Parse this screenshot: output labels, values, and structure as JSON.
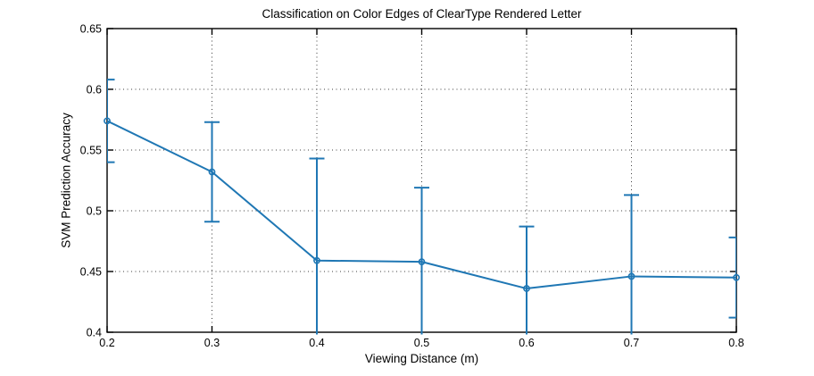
{
  "chart_data": {
    "type": "line",
    "title": "Classification on Color Edges of ClearType Rendered Letter",
    "xlabel": "Viewing Distance (m)",
    "ylabel": "SVM Prediction Accuracy",
    "x": [
      0.2,
      0.3,
      0.4,
      0.5,
      0.6,
      0.7,
      0.8
    ],
    "series": [
      {
        "name": "SVM Prediction Accuracy",
        "values": [
          0.574,
          0.532,
          0.459,
          0.458,
          0.436,
          0.446,
          0.445
        ],
        "errors": [
          0.034,
          0.041,
          0.084,
          0.061,
          0.051,
          0.067,
          0.033
        ],
        "color": "#1f77b4",
        "marker": "circle",
        "error_bars": "vertical, clipped at axis limits"
      }
    ],
    "xlim": [
      0.2,
      0.8
    ],
    "ylim": [
      0.4,
      0.65
    ],
    "xticks": [
      0.2,
      0.3,
      0.4,
      0.5,
      0.6,
      0.7,
      0.8
    ],
    "xtick_labels": [
      "0.2",
      "0.3",
      "0.4",
      "0.5",
      "0.6",
      "0.7",
      "0.8"
    ],
    "yticks": [
      0.4,
      0.45,
      0.5,
      0.55,
      0.6,
      0.65
    ],
    "ytick_labels": [
      "0.4",
      "0.45",
      "0.5",
      "0.55",
      "0.6",
      "0.65"
    ],
    "grid": "dotted",
    "grid_color": "#3c3c3c",
    "axis_color": "#000000",
    "background": "#ffffff",
    "legend": null
  }
}
